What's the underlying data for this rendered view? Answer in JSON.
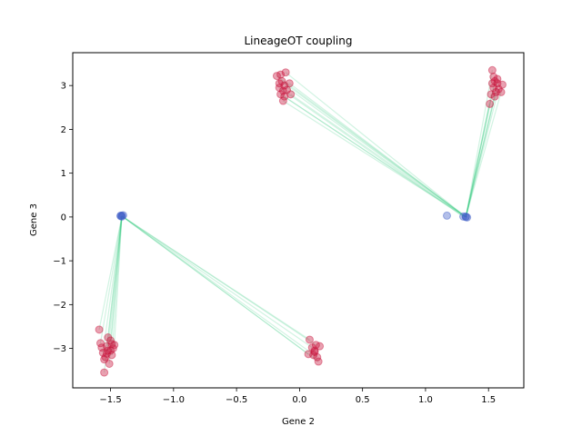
{
  "chart_data": {
    "type": "scatter",
    "title": "LineageOT coupling",
    "xlabel": "Gene 2",
    "ylabel": "Gene 3",
    "xlim": [
      -1.8,
      1.78
    ],
    "ylim": [
      -3.9,
      3.75
    ],
    "xticks": [
      -1.5,
      -1.0,
      -0.5,
      0.0,
      0.5,
      1.0,
      1.5
    ],
    "xtick_labels": [
      "−1.5",
      "−1.0",
      "−0.5",
      "0.0",
      "0.5",
      "1.0",
      "1.5"
    ],
    "yticks": [
      -3,
      -2,
      -1,
      0,
      1,
      2,
      3
    ],
    "ytick_labels": [
      "−3",
      "−2",
      "−1",
      "0",
      "1",
      "2",
      "3"
    ],
    "grid": false,
    "colors": {
      "ancestor": "#4060c8",
      "descendant": "#c8143c",
      "coupling": "#2ec87a"
    },
    "series": [
      {
        "role": "ancestor",
        "points": [
          [
            -1.42,
            0.03
          ],
          [
            -1.41,
            0.01
          ],
          [
            -1.4,
            0.04
          ],
          [
            -1.42,
            0.02
          ],
          [
            -1.41,
            0.03
          ],
          [
            1.17,
            0.03
          ],
          [
            1.3,
            0.01
          ],
          [
            1.32,
            0.0
          ],
          [
            1.33,
            -0.01
          ],
          [
            1.32,
            0.01
          ]
        ]
      },
      {
        "role": "descendant",
        "points": [
          [
            -1.59,
            -2.57
          ],
          [
            -1.58,
            -2.88
          ],
          [
            -1.55,
            -3.55
          ],
          [
            -1.53,
            -2.95
          ],
          [
            -1.52,
            -3.05
          ],
          [
            -1.5,
            -2.82
          ],
          [
            -1.49,
            -3.15
          ],
          [
            -1.48,
            -3.0
          ],
          [
            -1.56,
            -3.1
          ],
          [
            -1.54,
            -3.2
          ],
          [
            -1.47,
            -2.92
          ],
          [
            -1.51,
            -3.35
          ],
          [
            -1.57,
            -2.98
          ],
          [
            -1.53,
            -3.12
          ],
          [
            -1.5,
            -3.05
          ],
          [
            -1.55,
            -3.25
          ],
          [
            -1.52,
            -2.75
          ],
          [
            -1.49,
            -2.9
          ],
          [
            0.08,
            -2.8
          ],
          [
            0.07,
            -3.13
          ],
          [
            0.1,
            -2.98
          ],
          [
            0.12,
            -3.08
          ],
          [
            0.13,
            -2.92
          ],
          [
            0.14,
            -3.2
          ],
          [
            0.15,
            -3.3
          ],
          [
            0.12,
            -3.05
          ],
          [
            0.16,
            -2.95
          ],
          [
            0.11,
            -3.15
          ],
          [
            -0.18,
            3.22
          ],
          [
            -0.16,
            2.95
          ],
          [
            -0.15,
            2.8
          ],
          [
            -0.14,
            3.1
          ],
          [
            -0.13,
            2.65
          ],
          [
            -0.12,
            3.0
          ],
          [
            -0.11,
            3.3
          ],
          [
            -0.1,
            2.9
          ],
          [
            -0.08,
            3.05
          ],
          [
            -0.07,
            2.8
          ],
          [
            -0.15,
            3.25
          ],
          [
            -0.12,
            2.75
          ],
          [
            -0.16,
            3.05
          ],
          [
            -0.13,
            2.88
          ],
          [
            1.51,
            2.58
          ],
          [
            1.52,
            2.8
          ],
          [
            1.53,
            3.35
          ],
          [
            1.54,
            2.95
          ],
          [
            1.55,
            3.1
          ],
          [
            1.56,
            2.85
          ],
          [
            1.57,
            3.05
          ],
          [
            1.58,
            2.92
          ],
          [
            1.6,
            2.85
          ],
          [
            1.61,
            3.02
          ],
          [
            1.54,
            3.2
          ],
          [
            1.53,
            3.05
          ],
          [
            1.55,
            2.75
          ],
          [
            1.57,
            3.15
          ]
        ]
      }
    ],
    "couplings": [
      {
        "from": [
          -1.41,
          0.02
        ],
        "to": [
          -1.59,
          -2.57
        ]
      },
      {
        "from": [
          -1.41,
          0.02
        ],
        "to": [
          -1.58,
          -2.88
        ]
      },
      {
        "from": [
          -1.41,
          0.02
        ],
        "to": [
          -1.55,
          -3.55
        ]
      },
      {
        "from": [
          -1.41,
          0.02
        ],
        "to": [
          -1.53,
          -2.95
        ]
      },
      {
        "from": [
          -1.41,
          0.02
        ],
        "to": [
          -1.5,
          -2.82
        ]
      },
      {
        "from": [
          -1.41,
          0.02
        ],
        "to": [
          -1.49,
          -3.15
        ]
      },
      {
        "from": [
          -1.41,
          0.02
        ],
        "to": [
          -1.56,
          -3.1
        ]
      },
      {
        "from": [
          -1.41,
          0.02
        ],
        "to": [
          -1.52,
          -3.05
        ]
      },
      {
        "from": [
          -1.41,
          0.02
        ],
        "to": [
          -1.51,
          -3.35
        ]
      },
      {
        "from": [
          -1.41,
          0.02
        ],
        "to": [
          -1.47,
          -2.92
        ]
      },
      {
        "from": [
          -1.41,
          0.02
        ],
        "to": [
          0.08,
          -2.8
        ]
      },
      {
        "from": [
          -1.41,
          0.02
        ],
        "to": [
          0.07,
          -3.13
        ]
      },
      {
        "from": [
          -1.41,
          0.02
        ],
        "to": [
          0.1,
          -2.98
        ]
      },
      {
        "from": [
          -1.41,
          0.02
        ],
        "to": [
          0.13,
          -2.92
        ]
      },
      {
        "from": [
          -1.41,
          0.02
        ],
        "to": [
          0.14,
          -3.2
        ]
      },
      {
        "from": [
          -1.41,
          0.02
        ],
        "to": [
          0.15,
          -3.3
        ]
      },
      {
        "from": [
          1.32,
          0.0
        ],
        "to": [
          -0.18,
          3.22
        ]
      },
      {
        "from": [
          1.32,
          0.0
        ],
        "to": [
          -0.15,
          2.8
        ]
      },
      {
        "from": [
          1.32,
          0.0
        ],
        "to": [
          -0.13,
          2.65
        ]
      },
      {
        "from": [
          1.32,
          0.0
        ],
        "to": [
          -0.11,
          3.3
        ]
      },
      {
        "from": [
          1.32,
          0.0
        ],
        "to": [
          -0.08,
          3.05
        ]
      },
      {
        "from": [
          1.32,
          0.0
        ],
        "to": [
          -0.07,
          2.8
        ]
      },
      {
        "from": [
          1.32,
          0.0
        ],
        "to": [
          -0.12,
          3.0
        ]
      },
      {
        "from": [
          1.32,
          0.0
        ],
        "to": [
          -0.14,
          3.1
        ]
      },
      {
        "from": [
          1.3,
          0.01
        ],
        "to": [
          -0.16,
          2.95
        ]
      },
      {
        "from": [
          1.3,
          0.01
        ],
        "to": [
          -0.12,
          2.75
        ]
      },
      {
        "from": [
          1.32,
          0.0
        ],
        "to": [
          1.51,
          2.58
        ]
      },
      {
        "from": [
          1.32,
          0.0
        ],
        "to": [
          1.52,
          2.8
        ]
      },
      {
        "from": [
          1.32,
          0.0
        ],
        "to": [
          1.53,
          3.35
        ]
      },
      {
        "from": [
          1.32,
          0.0
        ],
        "to": [
          1.54,
          2.95
        ]
      },
      {
        "from": [
          1.32,
          0.0
        ],
        "to": [
          1.55,
          3.1
        ]
      },
      {
        "from": [
          1.32,
          0.0
        ],
        "to": [
          1.56,
          2.85
        ]
      },
      {
        "from": [
          1.32,
          0.0
        ],
        "to": [
          1.57,
          3.05
        ]
      },
      {
        "from": [
          1.32,
          0.0
        ],
        "to": [
          1.6,
          2.85
        ]
      },
      {
        "from": [
          1.32,
          0.0
        ],
        "to": [
          1.55,
          2.75
        ]
      },
      {
        "from": [
          1.32,
          0.0
        ],
        "to": [
          1.58,
          2.92
        ]
      }
    ]
  }
}
